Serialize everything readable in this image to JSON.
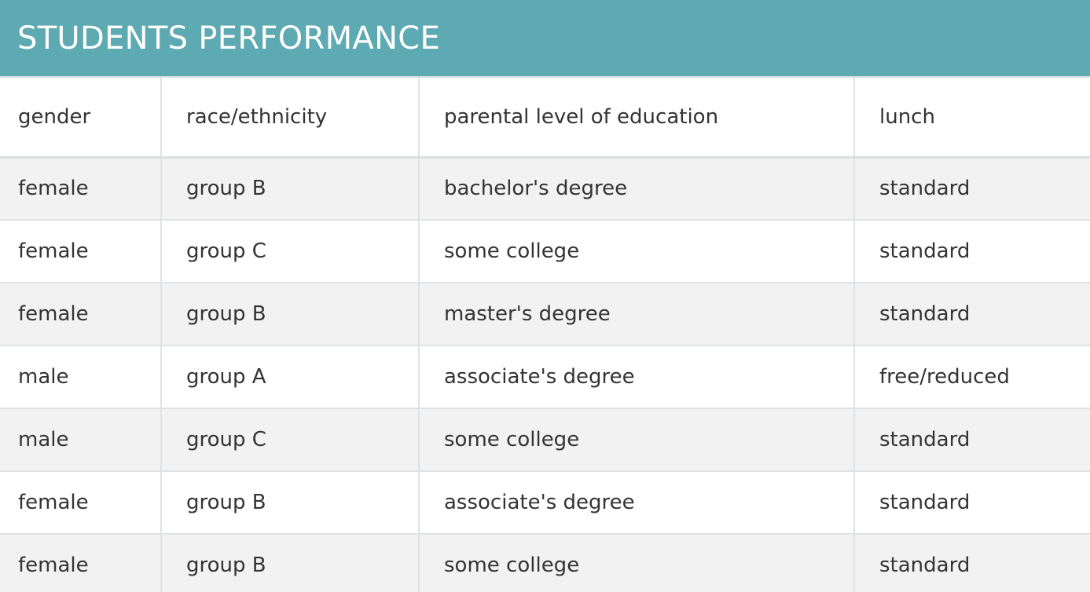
{
  "title": "STUDENTS PERFORMANCE",
  "columns": [
    "gender",
    "race/ethnicity",
    "parental level of education",
    "lunch"
  ],
  "rows": [
    [
      "female",
      "group B",
      "bachelor's degree",
      "standard"
    ],
    [
      "female",
      "group C",
      "some college",
      "standard"
    ],
    [
      "female",
      "group B",
      "master's degree",
      "standard"
    ],
    [
      "male",
      "group A",
      "associate's degree",
      "free/reduced"
    ],
    [
      "male",
      "group C",
      "some college",
      "standard"
    ],
    [
      "female",
      "group B",
      "associate's degree",
      "standard"
    ],
    [
      "female",
      "group B",
      "some college",
      "standard"
    ]
  ],
  "colors": {
    "header_bg": "#5eaab2",
    "header_text": "#ffffff",
    "row_alt_bg": "#f2f2f2",
    "text": "#333333",
    "border": "#dfe2e5"
  }
}
